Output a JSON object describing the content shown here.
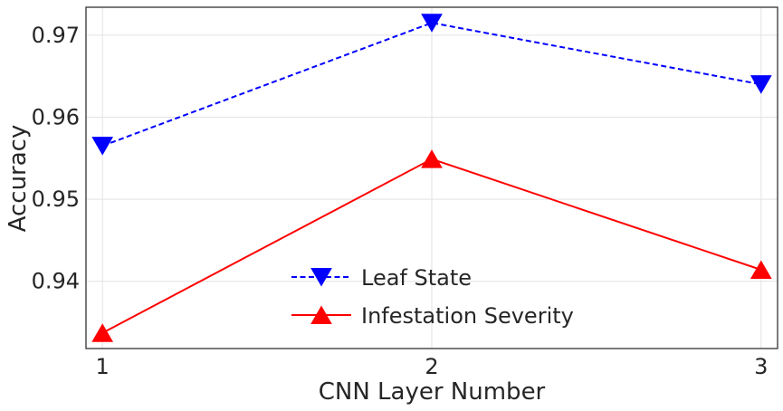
{
  "chart_data": {
    "type": "line",
    "title": "",
    "xlabel": "CNN Layer Number",
    "ylabel": "Accuracy",
    "x": [
      1,
      2,
      3
    ],
    "x_ticks": [
      "1",
      "2",
      "3"
    ],
    "xlim": [
      0.95,
      3.05
    ],
    "y_ticks": [
      "0.94",
      "0.95",
      "0.96",
      "0.97"
    ],
    "y_tick_values": [
      0.94,
      0.95,
      0.96,
      0.97
    ],
    "ylim": [
      0.9318,
      0.9734
    ],
    "grid": true,
    "legend_position": "lower center",
    "series": [
      {
        "name": "Leaf State",
        "values": [
          0.9565,
          0.9715,
          0.964
        ],
        "color": "#0000ff",
        "line_style": "dashed",
        "marker": "triangle-down"
      },
      {
        "name": "Infestation Severity",
        "values": [
          0.9337,
          0.9549,
          0.9414
        ],
        "color": "#ff0000",
        "line_style": "solid",
        "marker": "triangle-up"
      }
    ]
  }
}
